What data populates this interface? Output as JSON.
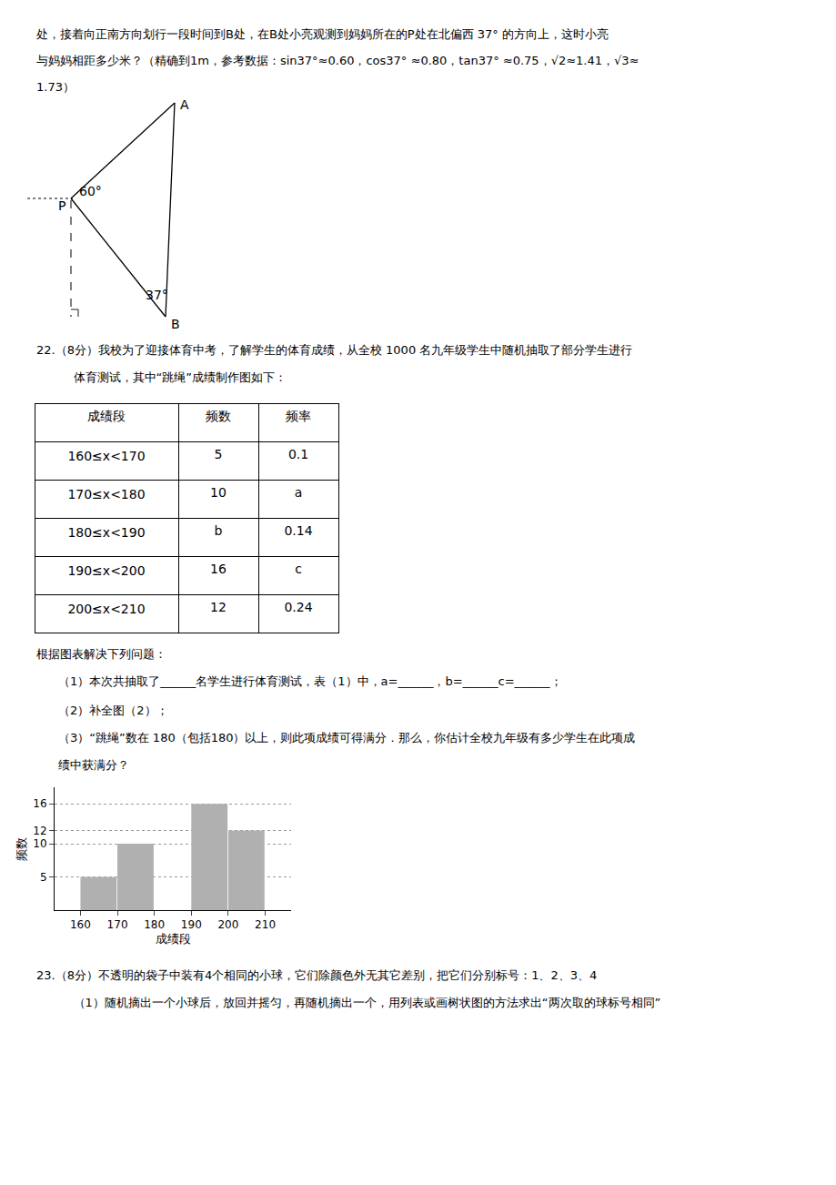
{
  "chart_data": [
    {
      "type": "diagram",
      "annotations": [
        "A",
        "P",
        "B",
        "60°",
        "37°"
      ]
    },
    {
      "type": "table",
      "columns": [
        "成绩段",
        "频数",
        "频率"
      ],
      "rows": [
        [
          "160≤x<170",
          "5",
          "0.1"
        ],
        [
          "170≤x<180",
          "10",
          "a"
        ],
        [
          "180≤x<190",
          "b",
          "0.14"
        ],
        [
          "190≤x<200",
          "16",
          "c"
        ],
        [
          "200≤x<210",
          "12",
          "0.24"
        ]
      ]
    },
    {
      "type": "histogram",
      "bins": [
        160,
        170,
        180,
        190,
        200,
        210
      ],
      "values": [
        5,
        10,
        0,
        16,
        12
      ],
      "color": "#b0b0b0",
      "xlabel": "成绩段",
      "ylabel": "频数",
      "xlim": [
        153,
        217
      ],
      "ylim": [
        0,
        18.5
      ],
      "xticks": [
        160,
        170,
        180,
        190,
        200,
        210
      ],
      "yticks": [
        5,
        10,
        12,
        16
      ],
      "grid": "y",
      "annotations": [
        "处，接着向正南方向划行一段时间到B处，在B处小亮观测到妈妈所在的P处在北偏西 37° 的方向上，这时小亮",
        "与妈妈相距多少米？（精确到1m，参考数据：sin37°≈0.60，cos37° ≈0.80，tan37° ≈0.75，√2≈1.41，√3≈",
        "1.73）",
        "22.（8分）我校为了迎接体育中考，了解学生的体育成绩，从全校 1000 名九年级学生中随机抽取了部分学生进行",
        "    体育测试，其中“跳绳”成绩制作图如下：",
        "根据图表解决下列问题：",
        "（1）本次共抽取了______名学生进行体育测试，表（1）中，a=______，b=______c=______；",
        "（2）补全图（2）；",
        "（3）“跳绳”数在 180（包括180）以上，则此项成绩可得满分．那么，你估计全校九年级有多少学生在此项成",
        "绩中获满分？",
        "23.（8分）不透明的袋子中装有4个相同的小球，它们除颜色外无其它差别，把它们分别标号：1、2、3、4",
        "    （1）随机摘出一个小球后，放回并摇匀，再随机摘出一个，用列表或画树状图的方法求出“两次取的球标号相同”"
      ]
    }
  ]
}
